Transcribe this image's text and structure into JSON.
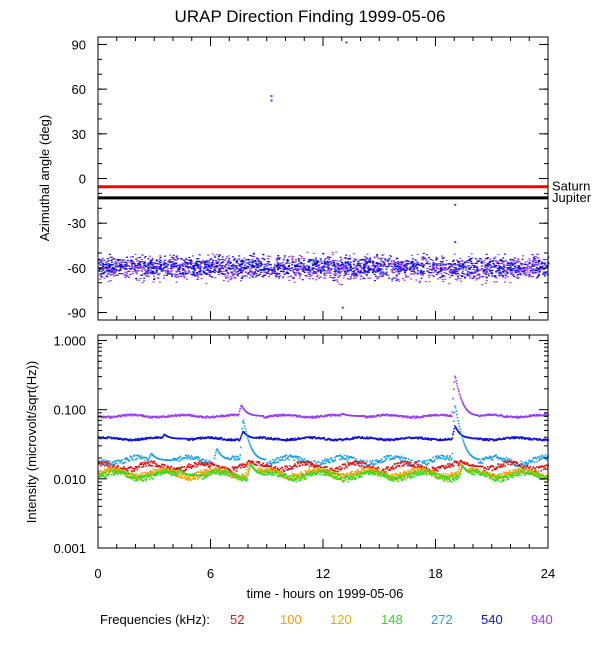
{
  "title": "URAP Direction Finding  1999-05-06",
  "xlabel": "time - hours on 1999-05-06",
  "xticks": [
    "0",
    "6",
    "12",
    "18",
    "24"
  ],
  "frequencies_label": "Frequencies (kHz):",
  "colors": {
    "52": "#e01010",
    "100": "#ff9a00",
    "120": "#e0b000",
    "148": "#22e022",
    "272": "#1aa0e8",
    "540": "#0a10d8",
    "940": "#9a3af0",
    "saturn": "#ff0000",
    "jupiter": "#000000"
  },
  "frequency_legend": [
    {
      "label": "52",
      "color": "#e01010"
    },
    {
      "label": "100",
      "color": "#ff9a00"
    },
    {
      "label": "120",
      "color": "#e0b000"
    },
    {
      "label": "148",
      "color": "#22e022"
    },
    {
      "label": "272",
      "color": "#1aa0e8"
    },
    {
      "label": "540",
      "color": "#0a10d8"
    },
    {
      "label": "940",
      "color": "#9a3af0"
    }
  ],
  "chart_data": [
    {
      "type": "scatter",
      "panel": "azimuth",
      "ylabel": "Azimuthal angle (deg)",
      "yticks": [
        "90",
        "60",
        "30",
        "0",
        "-30",
        "-60",
        "-90"
      ],
      "xlim": [
        0,
        24
      ],
      "ylim": [
        -95,
        95
      ],
      "reference_lines": [
        {
          "name": "Saturn",
          "value": -5.5,
          "color": "#ff0000"
        },
        {
          "name": "Jupiter",
          "value": -13,
          "color": "#000000"
        }
      ],
      "bands": [
        {
          "series": "940",
          "center": -60,
          "spread": 6,
          "color": "#9a3af0"
        },
        {
          "series": "540",
          "center": -59,
          "spread": 5,
          "color": "#0a10d8"
        }
      ],
      "outliers": [
        {
          "x": 9.2,
          "y": 56
        },
        {
          "x": 9.2,
          "y": 53
        },
        {
          "x": 13.2,
          "y": 92
        },
        {
          "x": 13.0,
          "y": -86
        },
        {
          "x": 19.0,
          "y": -17
        },
        {
          "x": 19.0,
          "y": -42
        }
      ]
    },
    {
      "type": "line",
      "panel": "intensity",
      "ylabel": "Intensity (microvolt/sqrt(Hz))",
      "yticks": [
        "1.000",
        "0.100",
        "0.010",
        "0.001"
      ],
      "yscale": "log",
      "xlim": [
        0,
        24
      ],
      "ylim": [
        0.001,
        1.2
      ],
      "series": [
        {
          "name": "940",
          "color": "#9a3af0",
          "base": 0.083,
          "peaks": [
            {
              "x": 7.6,
              "y": 0.12
            },
            {
              "x": 19.0,
              "y": 0.32
            },
            {
              "x": 13.0,
              "y": 0.09
            }
          ]
        },
        {
          "name": "540",
          "color": "#0a10d8",
          "base": 0.039,
          "peaks": [
            {
              "x": 7.7,
              "y": 0.05
            },
            {
              "x": 19.0,
              "y": 0.06
            },
            {
              "x": 3.5,
              "y": 0.045
            }
          ]
        },
        {
          "name": "272",
          "color": "#1aa0e8",
          "base": 0.019,
          "peaks": [
            {
              "x": 7.7,
              "y": 0.075
            },
            {
              "x": 19.0,
              "y": 0.12
            },
            {
              "x": 6.3,
              "y": 0.028
            },
            {
              "x": 2.8,
              "y": 0.024
            }
          ]
        },
        {
          "name": "52",
          "color": "#e01010",
          "base": 0.0155,
          "peaks": [
            {
              "x": 8.0,
              "y": 0.019
            },
            {
              "x": 19.3,
              "y": 0.019
            }
          ]
        },
        {
          "name": "100",
          "color": "#ff9a00",
          "base": 0.0125,
          "peaks": [
            {
              "x": 8.0,
              "y": 0.018
            },
            {
              "x": 19.3,
              "y": 0.017
            }
          ]
        },
        {
          "name": "120",
          "color": "#e0b000",
          "base": 0.012,
          "peaks": [
            {
              "x": 8.1,
              "y": 0.017
            },
            {
              "x": 19.4,
              "y": 0.016
            }
          ]
        },
        {
          "name": "148",
          "color": "#22e022",
          "base": 0.0115,
          "peaks": [
            {
              "x": 8.1,
              "y": 0.017
            },
            {
              "x": 19.4,
              "y": 0.016
            },
            {
              "x": 4.3,
              "y": 0.014
            }
          ]
        }
      ]
    }
  ]
}
